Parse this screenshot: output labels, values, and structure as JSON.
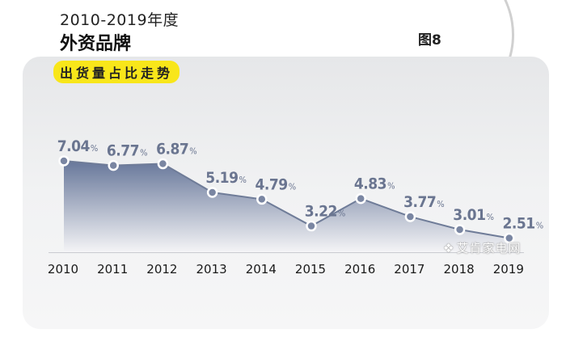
{
  "header": {
    "years": "2010-2019年度",
    "main_title": "外资品牌",
    "figure_label": "图8",
    "subtitle": "出货量占比走势"
  },
  "watermark": "艾肯家电网",
  "colors": {
    "area_top": "#67779a",
    "area_bottom": "#f4f4f6",
    "line": "#6f7c98",
    "marker_fill": "#7a86a2",
    "marker_stroke": "#ffffff",
    "value_text": "#6a7590",
    "highlight": "#f8e61a"
  },
  "chart_data": {
    "type": "area",
    "categories": [
      "2010",
      "2011",
      "2012",
      "2013",
      "2014",
      "2015",
      "2016",
      "2017",
      "2018",
      "2019"
    ],
    "values": [
      7.04,
      6.77,
      6.87,
      5.19,
      4.79,
      3.22,
      4.83,
      3.77,
      3.01,
      2.51
    ],
    "value_labels": [
      "7.04",
      "6.77",
      "6.87",
      "5.19",
      "4.79",
      "3.22",
      "4.83",
      "3.77",
      "3.01",
      "2.51"
    ],
    "unit": "%",
    "title": "出货量占比走势",
    "grid": false,
    "legend": "none"
  }
}
